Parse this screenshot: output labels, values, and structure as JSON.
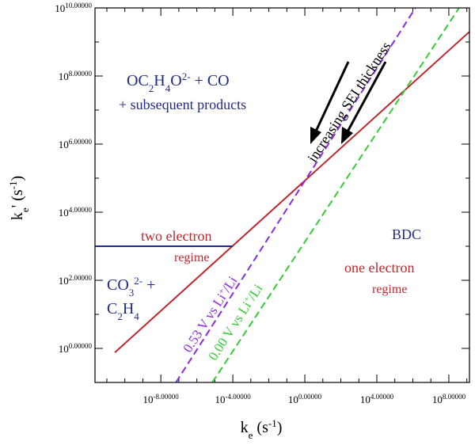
{
  "chart_data": {
    "type": "line",
    "log_scale": true,
    "xlabel": [
      "k",
      "e",
      " (s",
      "-1",
      ")"
    ],
    "ylabel": [
      "k",
      "e",
      "' (s",
      "-1",
      ")"
    ],
    "xlim": [
      2.2e-12,
      1400000000.0
    ],
    "ylim": [
      0.1,
      10000000000.0
    ],
    "xticks": [
      {
        "value": 1e-08,
        "label": "10-8.00000"
      },
      {
        "value": 0.0001,
        "label": "10-4.00000"
      },
      {
        "value": 1,
        "label": "100.00000"
      },
      {
        "value": 10000.0,
        "label": "104.00000"
      },
      {
        "value": 100000000.0,
        "label": "108.00000"
      }
    ],
    "yticks": [
      {
        "value": 1,
        "label": "100.00000"
      },
      {
        "value": 100,
        "label": "102.00000"
      },
      {
        "value": 10000,
        "label": "104.00000"
      },
      {
        "value": 1000000,
        "label": "106.00000"
      },
      {
        "value": 100000000,
        "label": "108.00000"
      },
      {
        "value": 10000000000,
        "label": "1010.00000"
      }
    ],
    "xticks_minor": [
      1e-11,
      1e-10,
      1e-09,
      1e-07,
      1e-06,
      1e-05,
      0.001,
      0.01,
      0.1,
      10,
      100,
      1000,
      100000.0,
      1000000.0,
      10000000.0,
      1000000000.0
    ],
    "yticks_minor": [
      10,
      1000,
      100000,
      10000000,
      1000000000
    ],
    "series": [
      {
        "color": "#c0272d",
        "dash": false,
        "x": [
          2.8e-11,
          1400000000.0
        ],
        "values": [
          0.76,
          2000000000.0
        ]
      },
      {
        "color": "#1f2a8a",
        "dash": false,
        "x": [
          2.2e-12,
          0.0001
        ],
        "values": [
          1000,
          1000
        ]
      },
      {
        "color": "#8a2be2",
        "dash": true,
        "x": [
          6.9e-08,
          1400000.0
        ],
        "values": [
          0.1,
          10000000000.0
        ]
      },
      {
        "color": "#33cc33",
        "dash": true,
        "x": [
          7.2e-06,
          370000000.0
        ],
        "values": [
          0.1,
          10000000000.0
        ]
      }
    ],
    "annotations": [
      [
        "OC",
        "2",
        "H",
        "4",
        "O",
        "2-",
        " + CO"
      ],
      [
        "+ subsequent products"
      ],
      [
        "two electron"
      ],
      [
        "regime"
      ],
      [
        "BDC"
      ],
      [
        "one electron"
      ],
      [
        "regime"
      ],
      [
        "CO",
        "3",
        "2-",
        " +"
      ],
      [
        "C",
        "2",
        "H",
        "4"
      ],
      [
        "increasing SEI thickness"
      ],
      [
        "0.53 V vs Li",
        "+",
        "/Li"
      ],
      [
        "0.00 V vs Li",
        "+",
        "/Li"
      ]
    ]
  }
}
